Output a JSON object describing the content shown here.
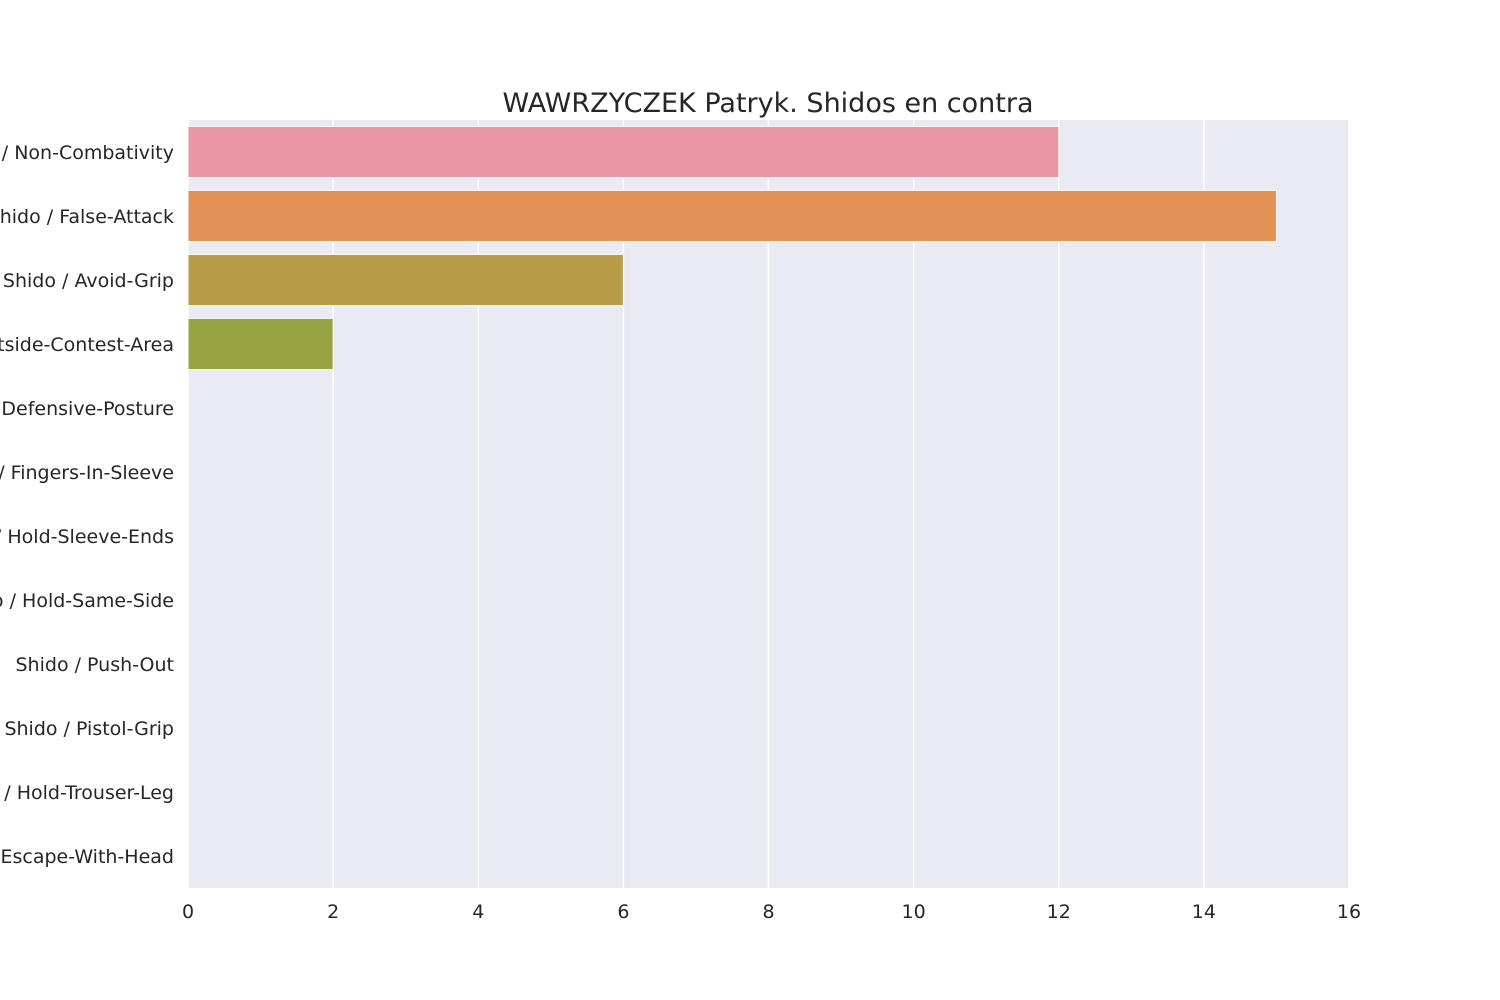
{
  "chart_data": {
    "type": "bar",
    "orientation": "horizontal",
    "title": "WAWRZYCZEK Patryk. Shidos en contra",
    "xlabel": "",
    "ylabel": "",
    "categories": [
      "Shido / Non-Combativity",
      "Shido / False-Attack",
      "Shido / Avoid-Grip",
      "Shido / Outside-Contest-Area",
      "Shido / Defensive-Posture",
      "Shido / Fingers-In-Sleeve",
      "Shido / Hold-Sleeve-Ends",
      "Shido / Hold-Same-Side",
      "Shido / Push-Out",
      "Shido / Pistol-Grip",
      "Shido / Hold-Trouser-Leg",
      "Shido / Escape-With-Head"
    ],
    "values": [
      12,
      15,
      6,
      2,
      0,
      0,
      0,
      0,
      0,
      0,
      0,
      0
    ],
    "xlim": [
      0,
      16
    ],
    "xticks": [
      0,
      2,
      4,
      6,
      8,
      10,
      12,
      14,
      16
    ],
    "grid": true,
    "colors": [
      "#ea96a3",
      "#e29254",
      "#b89c4a",
      "#98a344",
      "#5aae5c",
      "#35ac8d",
      "#38a9a5",
      "#3aa6c3",
      "#5c9fe3",
      "#a48bf2",
      "#e26fe8",
      "#f080c1"
    ],
    "background": "#eaeaf2"
  }
}
